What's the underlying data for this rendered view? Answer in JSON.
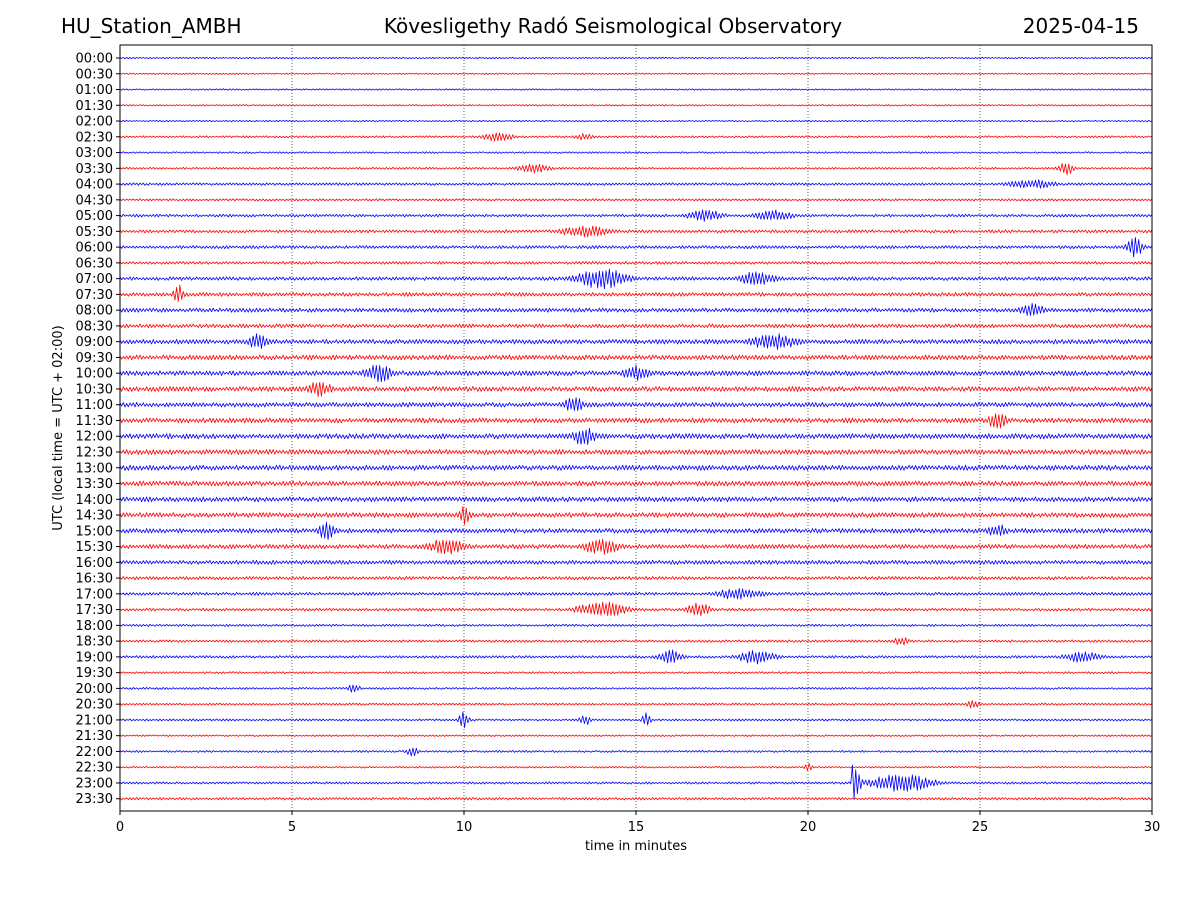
{
  "header": {
    "station": "HU_Station_AMBH",
    "title": "Kövesligethy Radó Seismological Observatory",
    "date": "2025-04-15"
  },
  "chart_data": {
    "type": "line",
    "subtype": "helicorder",
    "xlabel": "time in minutes",
    "ylabel": "UTC (local time = UTC + 02:00)",
    "xlim": [
      0,
      30
    ],
    "x_ticks": [
      0,
      5,
      10,
      15,
      20,
      25,
      30
    ],
    "x_tick_labels": [
      "0",
      "5",
      "10",
      "15",
      "20",
      "25",
      "30"
    ],
    "grid": "vertical dotted lines at x = 5, 10, 15, 20, 25",
    "trace_colors": [
      "#0000ff",
      "#ff0000"
    ],
    "color_order": "alternating blue, red starting with 00:00",
    "rows": [
      "00:00",
      "00:30",
      "01:00",
      "01:30",
      "02:00",
      "02:30",
      "03:00",
      "03:30",
      "04:00",
      "04:30",
      "05:00",
      "05:30",
      "06:00",
      "06:30",
      "07:00",
      "07:30",
      "08:00",
      "08:30",
      "09:00",
      "09:30",
      "10:00",
      "10:30",
      "11:00",
      "11:30",
      "12:00",
      "12:30",
      "13:00",
      "13:30",
      "14:00",
      "14:30",
      "15:00",
      "15:30",
      "16:00",
      "16:30",
      "17:00",
      "17:30",
      "18:00",
      "18:30",
      "19:00",
      "19:30",
      "20:00",
      "20:30",
      "21:00",
      "21:30",
      "22:00",
      "22:30",
      "23:00",
      "23:30"
    ],
    "noise_level": [
      0.6,
      0.6,
      0.6,
      0.6,
      0.6,
      0.8,
      0.7,
      0.8,
      1.0,
      0.9,
      1.1,
      1.2,
      1.2,
      1.1,
      1.4,
      1.5,
      1.6,
      1.5,
      1.8,
      1.9,
      1.9,
      1.9,
      1.8,
      1.9,
      2.0,
      1.9,
      2.0,
      1.9,
      1.9,
      1.9,
      1.8,
      1.7,
      1.6,
      1.3,
      1.2,
      1.1,
      0.9,
      1.0,
      1.0,
      0.8,
      0.8,
      0.9,
      0.8,
      0.7,
      0.8,
      0.7,
      0.9,
      1.0
    ],
    "events": [
      {
        "row": 5,
        "t": 11.0,
        "amp": 4,
        "dur": 1.3
      },
      {
        "row": 5,
        "t": 13.5,
        "amp": 3,
        "dur": 0.8
      },
      {
        "row": 7,
        "t": 12.0,
        "amp": 4,
        "dur": 1.4
      },
      {
        "row": 7,
        "t": 27.5,
        "amp": 6,
        "dur": 0.6
      },
      {
        "row": 8,
        "t": 26.5,
        "amp": 4,
        "dur": 2.0
      },
      {
        "row": 10,
        "t": 17.0,
        "amp": 5,
        "dur": 1.5
      },
      {
        "row": 10,
        "t": 19.0,
        "amp": 5,
        "dur": 1.5
      },
      {
        "row": 11,
        "t": 13.5,
        "amp": 5,
        "dur": 2.0
      },
      {
        "row": 12,
        "t": 29.5,
        "amp": 10,
        "dur": 0.6
      },
      {
        "row": 14,
        "t": 14.0,
        "amp": 9,
        "dur": 2.0
      },
      {
        "row": 14,
        "t": 18.5,
        "amp": 6,
        "dur": 1.5
      },
      {
        "row": 15,
        "t": 1.7,
        "amp": 9,
        "dur": 0.4
      },
      {
        "row": 16,
        "t": 26.5,
        "amp": 6,
        "dur": 1.0
      },
      {
        "row": 18,
        "t": 4.0,
        "amp": 7,
        "dur": 0.8
      },
      {
        "row": 18,
        "t": 19.0,
        "amp": 7,
        "dur": 2.0
      },
      {
        "row": 20,
        "t": 7.5,
        "amp": 8,
        "dur": 1.2
      },
      {
        "row": 20,
        "t": 15.0,
        "amp": 7,
        "dur": 1.0
      },
      {
        "row": 21,
        "t": 5.8,
        "amp": 7,
        "dur": 1.0
      },
      {
        "row": 22,
        "t": 13.2,
        "amp": 7,
        "dur": 0.8
      },
      {
        "row": 23,
        "t": 25.5,
        "amp": 7,
        "dur": 0.8
      },
      {
        "row": 24,
        "t": 13.5,
        "amp": 8,
        "dur": 1.0
      },
      {
        "row": 29,
        "t": 10.0,
        "amp": 8,
        "dur": 0.5
      },
      {
        "row": 30,
        "t": 6.0,
        "amp": 10,
        "dur": 0.6
      },
      {
        "row": 30,
        "t": 25.5,
        "amp": 6,
        "dur": 0.8
      },
      {
        "row": 31,
        "t": 9.5,
        "amp": 7,
        "dur": 1.5
      },
      {
        "row": 31,
        "t": 14.0,
        "amp": 7,
        "dur": 1.5
      },
      {
        "row": 34,
        "t": 18.0,
        "amp": 5,
        "dur": 2.0
      },
      {
        "row": 35,
        "t": 14.0,
        "amp": 7,
        "dur": 2.0
      },
      {
        "row": 35,
        "t": 16.8,
        "amp": 6,
        "dur": 1.0
      },
      {
        "row": 37,
        "t": 22.7,
        "amp": 4,
        "dur": 0.6
      },
      {
        "row": 38,
        "t": 16.0,
        "amp": 6,
        "dur": 1.0
      },
      {
        "row": 38,
        "t": 18.5,
        "amp": 6,
        "dur": 1.5
      },
      {
        "row": 38,
        "t": 28.0,
        "amp": 5,
        "dur": 1.5
      },
      {
        "row": 40,
        "t": 6.8,
        "amp": 4,
        "dur": 0.5
      },
      {
        "row": 41,
        "t": 24.8,
        "amp": 4,
        "dur": 0.5
      },
      {
        "row": 42,
        "t": 10.0,
        "amp": 7,
        "dur": 0.4
      },
      {
        "row": 42,
        "t": 13.5,
        "amp": 5,
        "dur": 0.5
      },
      {
        "row": 42,
        "t": 15.3,
        "amp": 8,
        "dur": 0.3
      },
      {
        "row": 44,
        "t": 8.5,
        "amp": 4,
        "dur": 0.5
      },
      {
        "row": 45,
        "t": 20.0,
        "amp": 4,
        "dur": 0.3
      },
      {
        "row": 46,
        "t": 21.3,
        "amp": 20,
        "dur": 0.25,
        "type": "quake"
      },
      {
        "row": 46,
        "t": 22.7,
        "amp": 8,
        "dur": 2.4
      }
    ]
  }
}
